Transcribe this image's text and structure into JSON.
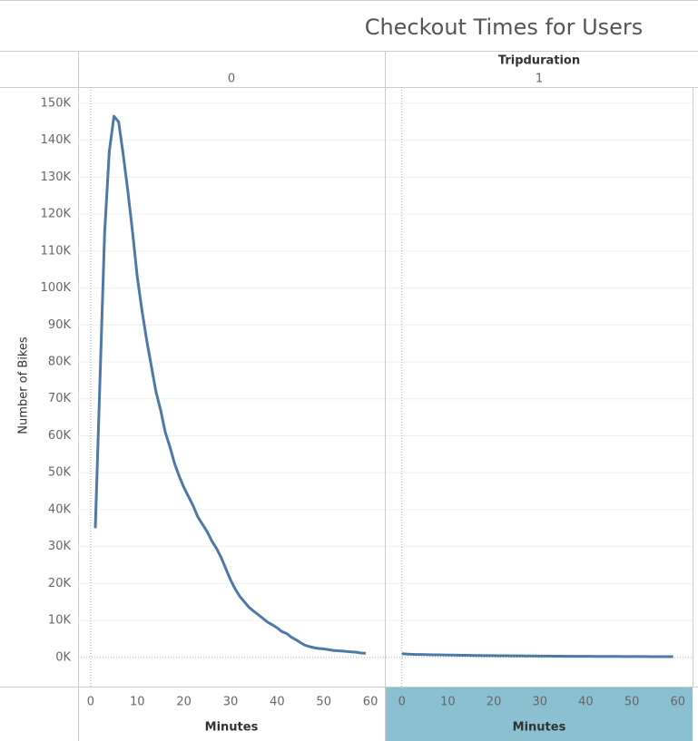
{
  "chart_data": {
    "type": "line",
    "title": "Checkout Times for Users",
    "facet_label": "Tripduration",
    "y_label": "Number of Bikes",
    "color": "#4e79a7",
    "grid": true,
    "ylim": [
      -7900,
      154400
    ],
    "yticks": [
      {
        "value": 0,
        "label": "0K"
      },
      {
        "value": 10000,
        "label": "10K"
      },
      {
        "value": 20000,
        "label": "20K"
      },
      {
        "value": 30000,
        "label": "30K"
      },
      {
        "value": 40000,
        "label": "40K"
      },
      {
        "value": 50000,
        "label": "50K"
      },
      {
        "value": 60000,
        "label": "60K"
      },
      {
        "value": 70000,
        "label": "70K"
      },
      {
        "value": 80000,
        "label": "80K"
      },
      {
        "value": 90000,
        "label": "90K"
      },
      {
        "value": 100000,
        "label": "100K"
      },
      {
        "value": 110000,
        "label": "110K"
      },
      {
        "value": 120000,
        "label": "120K"
      },
      {
        "value": 130000,
        "label": "130K"
      },
      {
        "value": 140000,
        "label": "140K"
      },
      {
        "value": 150000,
        "label": "150K"
      }
    ],
    "panels": [
      {
        "label": "0",
        "x_label": "Minutes",
        "xlim": [
          -2.7,
          63.1
        ],
        "xticks": [
          0,
          10,
          20,
          30,
          40,
          50,
          60
        ],
        "x": [
          1,
          2,
          3,
          4,
          5,
          6,
          7,
          8,
          9,
          10,
          11,
          12,
          13,
          14,
          15,
          16,
          17,
          18,
          19,
          20,
          21,
          22,
          23,
          24,
          25,
          26,
          27,
          28,
          29,
          30,
          31,
          32,
          33,
          34,
          35,
          36,
          37,
          38,
          39,
          40,
          41,
          42,
          43,
          44,
          45,
          46,
          47,
          48,
          49,
          50,
          51,
          52,
          53,
          54,
          55,
          56,
          57,
          58,
          59
        ],
        "values": [
          35000,
          75000,
          115000,
          137000,
          146500,
          145000,
          136000,
          126000,
          115000,
          103000,
          94000,
          86000,
          79000,
          72000,
          67000,
          61000,
          57000,
          52500,
          49000,
          46000,
          43500,
          41000,
          38000,
          36000,
          34000,
          31500,
          29500,
          27000,
          24000,
          21000,
          18500,
          16500,
          15000,
          13500,
          12500,
          11500,
          10500,
          9500,
          8800,
          8000,
          7000,
          6500,
          5500,
          4800,
          4000,
          3300,
          2900,
          2600,
          2400,
          2300,
          2100,
          1900,
          1800,
          1700,
          1600,
          1500,
          1400,
          1200,
          1100
        ]
      },
      {
        "label": "1",
        "x_label": "Minutes",
        "xlim": [
          -3.5,
          63.2
        ],
        "xticks": [
          0,
          10,
          20,
          30,
          40,
          50,
          60
        ],
        "x": [
          0,
          1,
          2,
          3,
          4,
          5,
          6,
          7,
          8,
          9,
          10,
          11,
          12,
          13,
          14,
          15,
          16,
          17,
          18,
          19,
          20,
          21,
          22,
          23,
          24,
          25,
          26,
          27,
          28,
          29,
          30,
          31,
          32,
          33,
          34,
          35,
          36,
          37,
          38,
          39,
          40,
          41,
          42,
          43,
          44,
          45,
          46,
          47,
          48,
          49,
          50,
          51,
          52,
          53,
          54,
          55,
          56,
          57,
          58,
          59
        ],
        "values": [
          1000,
          900,
          850,
          800,
          780,
          750,
          720,
          700,
          680,
          660,
          640,
          620,
          600,
          580,
          560,
          540,
          520,
          500,
          490,
          480,
          470,
          460,
          450,
          440,
          430,
          420,
          410,
          400,
          390,
          380,
          370,
          360,
          350,
          340,
          330,
          320,
          310,
          300,
          295,
          290,
          285,
          280,
          275,
          270,
          265,
          260,
          255,
          250,
          245,
          240,
          235,
          230,
          225,
          220,
          215,
          210,
          205,
          200,
          195,
          190
        ]
      }
    ]
  }
}
